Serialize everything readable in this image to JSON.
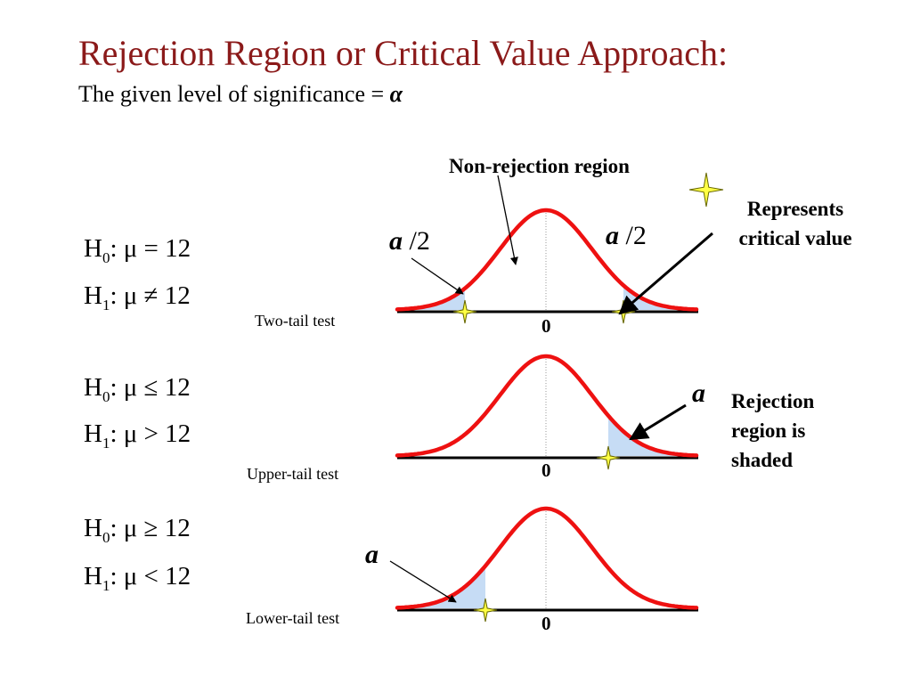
{
  "title": "Rejection Region or Critical Value Approach:",
  "subtitle_text": "The given level of significance = ",
  "alpha_symbol": "α",
  "tests": [
    {
      "h0": {
        "prefix": "H",
        "sub": "0",
        "body": ": μ = 12"
      },
      "h1": {
        "prefix": "H",
        "sub": "1",
        "body": ": μ ≠ 12"
      },
      "label": "Two-tail test",
      "zero_label": "0",
      "tail": "both"
    },
    {
      "h0": {
        "prefix": "H",
        "sub": "0",
        "body": ": μ ≤ 12"
      },
      "h1": {
        "prefix": "H",
        "sub": "1",
        "body": ": μ > 12"
      },
      "label": "Upper-tail test",
      "zero_label": "0",
      "tail": "upper"
    },
    {
      "h0": {
        "prefix": "H",
        "sub": "0",
        "body": ": μ ≥ 12"
      },
      "h1": {
        "prefix": "H",
        "sub": "1",
        "body": ": μ < 12"
      },
      "label": "Lower-tail test",
      "zero_label": "0",
      "tail": "lower"
    }
  ],
  "alpha_labels": {
    "left_half": {
      "a": "a",
      "rest": " /2"
    },
    "right_half": {
      "a": "a",
      "rest": " /2"
    },
    "upper": {
      "a": "a",
      "rest": ""
    },
    "lower": {
      "a": "a",
      "rest": ""
    }
  },
  "annotations": {
    "non_rejection": "Non-rejection region",
    "represents_critical_value": "Represents critical value",
    "rejection_region_shaded": "Rejection region is shaded"
  },
  "colors": {
    "title": "#8b1a1a",
    "curve": "#ee1111",
    "shade": "#c6dcf5",
    "star_fill": "#ffff44",
    "star_stroke": "#666600"
  }
}
